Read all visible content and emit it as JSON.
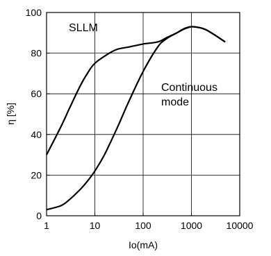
{
  "chart_data": {
    "type": "line",
    "xlabel": "Io(mA)",
    "ylabel": "η [%]",
    "xscale": "log",
    "xlim": [
      1,
      10000
    ],
    "ylim": [
      0,
      100
    ],
    "grid": true,
    "x_ticks": [
      "1",
      "10",
      "100",
      "1000",
      "10000"
    ],
    "y_ticks": [
      "0",
      "20",
      "40",
      "60",
      "80",
      "100"
    ],
    "annotations": [
      "SLLM",
      "Continuous",
      "mode"
    ],
    "series": [
      {
        "x": [
          1,
          2,
          3,
          5,
          7,
          10,
          20,
          30,
          50,
          100,
          200,
          300,
          500,
          700,
          1000,
          1500,
          2000,
          3000,
          5000
        ],
        "y": [
          30,
          44,
          53,
          64,
          70,
          75,
          80,
          82,
          83,
          84.5,
          85.5,
          87.5,
          90,
          91.8,
          93,
          92.5,
          91.5,
          89,
          85.5
        ]
      },
      {
        "x": [
          1,
          2,
          3,
          5,
          7,
          10,
          15,
          20,
          30,
          50,
          100,
          200,
          300,
          500,
          700,
          1000,
          1500,
          2000,
          3000,
          5000
        ],
        "y": [
          3,
          5,
          8,
          13,
          17,
          22,
          29,
          35,
          44,
          56,
          71,
          83,
          87,
          90,
          92,
          93,
          92.5,
          91.5,
          89,
          85.5
        ]
      }
    ]
  }
}
